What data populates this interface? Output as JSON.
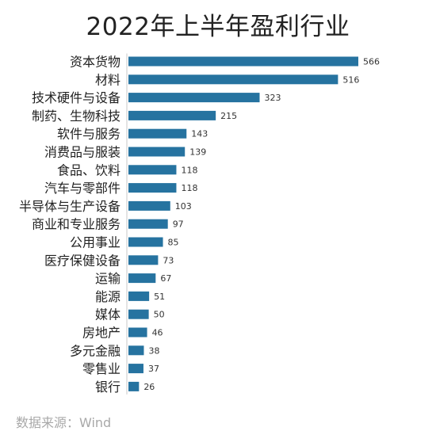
{
  "chart_data": {
    "type": "bar",
    "orientation": "horizontal",
    "title": "2022年上半年盈利行业",
    "categories": [
      "资本货物",
      "材料",
      "技术硬件与设备",
      "制药、生物科技",
      "软件与服务",
      "消费品与服装",
      "食品、饮料",
      "汽车与零部件",
      "半导体与生产设备",
      "商业和专业服务",
      "公用事业",
      "医疗保健设备",
      "运输",
      "能源",
      "媒体",
      "房地产",
      "多元金融",
      "零售业",
      "银行"
    ],
    "values": [
      566,
      516,
      323,
      215,
      143,
      139,
      118,
      118,
      103,
      97,
      85,
      73,
      67,
      51,
      50,
      46,
      38,
      37,
      26
    ],
    "bar_color": "#2673a0",
    "data_labels": true,
    "grid": false,
    "xlim": [
      0,
      600
    ]
  },
  "source": "数据来源：Wind"
}
